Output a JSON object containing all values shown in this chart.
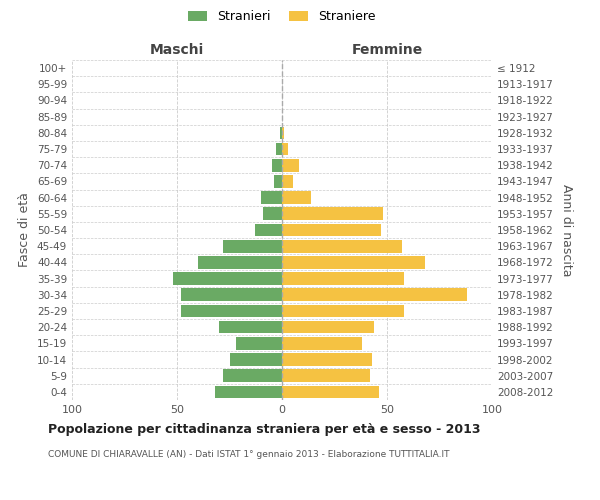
{
  "age_groups": [
    "0-4",
    "5-9",
    "10-14",
    "15-19",
    "20-24",
    "25-29",
    "30-34",
    "35-39",
    "40-44",
    "45-49",
    "50-54",
    "55-59",
    "60-64",
    "65-69",
    "70-74",
    "75-79",
    "80-84",
    "85-89",
    "90-94",
    "95-99",
    "100+"
  ],
  "birth_years": [
    "2008-2012",
    "2003-2007",
    "1998-2002",
    "1993-1997",
    "1988-1992",
    "1983-1987",
    "1978-1982",
    "1973-1977",
    "1968-1972",
    "1963-1967",
    "1958-1962",
    "1953-1957",
    "1948-1952",
    "1943-1947",
    "1938-1942",
    "1933-1937",
    "1928-1932",
    "1923-1927",
    "1918-1922",
    "1913-1917",
    "≤ 1912"
  ],
  "males": [
    32,
    28,
    25,
    22,
    30,
    48,
    48,
    52,
    40,
    28,
    13,
    9,
    10,
    4,
    5,
    3,
    1,
    0,
    0,
    0,
    0
  ],
  "females": [
    46,
    42,
    43,
    38,
    44,
    58,
    88,
    58,
    68,
    57,
    47,
    48,
    14,
    5,
    8,
    3,
    1,
    0,
    0,
    0,
    0
  ],
  "male_color": "#6aaa64",
  "female_color": "#f5c242",
  "background_color": "#ffffff",
  "grid_color": "#cccccc",
  "title": "Popolazione per cittadinanza straniera per età e sesso - 2013",
  "subtitle": "COMUNE DI CHIARAVALLE (AN) - Dati ISTAT 1° gennaio 2013 - Elaborazione TUTTITALIA.IT",
  "legend_stranieri": "Stranieri",
  "legend_straniere": "Straniere",
  "xlabel_left": "Maschi",
  "xlabel_right": "Femmine",
  "ylabel_left": "Fasce di età",
  "ylabel_right": "Anni di nascita",
  "xlim": 100
}
